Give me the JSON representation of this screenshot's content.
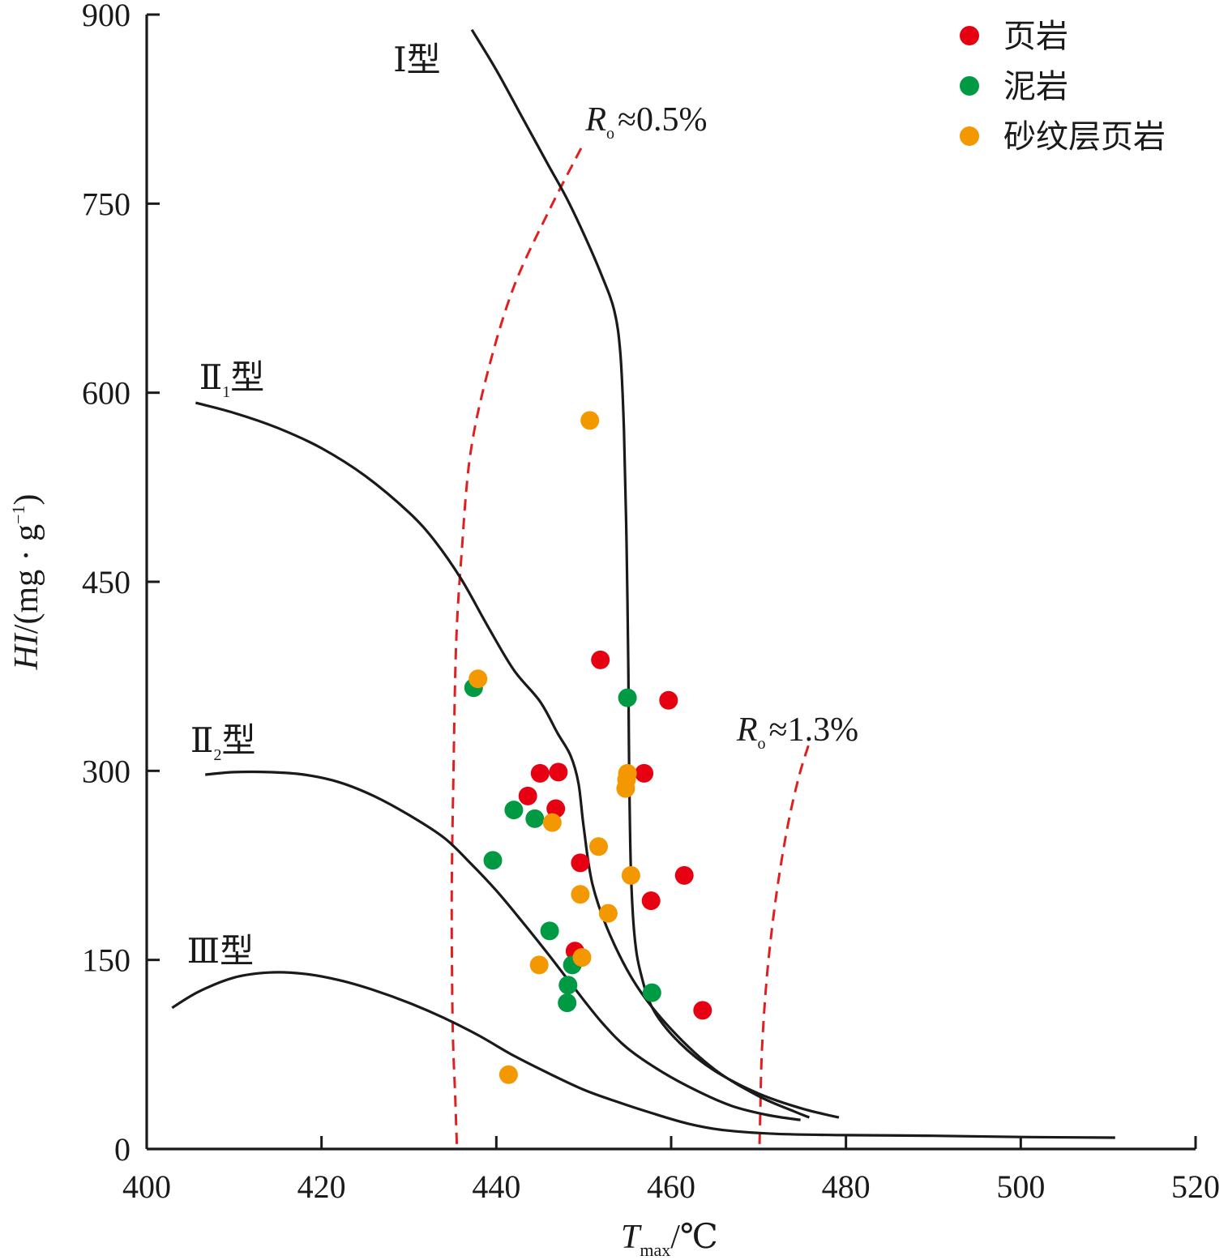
{
  "chart_data": {
    "type": "scatter",
    "xlim": [
      400,
      520
    ],
    "ylim": [
      0,
      900
    ],
    "xticks": [
      400,
      420,
      440,
      460,
      480,
      500,
      520
    ],
    "yticks": [
      0,
      150,
      300,
      450,
      600,
      750,
      900
    ],
    "xlabel": {
      "main": "T",
      "sub": "max",
      "unit": "/℃"
    },
    "ylabel": {
      "main": "HI",
      "unit": "/(mg · g",
      "sup": "−1",
      "close": ")"
    },
    "legend": {
      "position": "top-right",
      "entries": [
        {
          "name": "页岩",
          "color": "#e60012"
        },
        {
          "name": "泥岩",
          "color": "#009944"
        },
        {
          "name": "砂纹层页岩",
          "color": "#f39800"
        }
      ]
    },
    "series": [
      {
        "name": "页岩",
        "color": "#e60012",
        "points": [
          [
            451.9,
            388
          ],
          [
            459.7,
            356
          ],
          [
            445.0,
            298
          ],
          [
            447.1,
            299
          ],
          [
            456.9,
            298
          ],
          [
            443.6,
            280
          ],
          [
            446.8,
            270
          ],
          [
            449.6,
            227
          ],
          [
            461.5,
            217
          ],
          [
            457.7,
            197
          ],
          [
            449.0,
            157
          ],
          [
            463.6,
            110
          ]
        ]
      },
      {
        "name": "泥岩",
        "color": "#009944",
        "points": [
          [
            437.4,
            366
          ],
          [
            455.0,
            358
          ],
          [
            442.0,
            269
          ],
          [
            444.4,
            262
          ],
          [
            439.6,
            229
          ],
          [
            446.1,
            173
          ],
          [
            448.7,
            146
          ],
          [
            448.2,
            130
          ],
          [
            448.1,
            116
          ],
          [
            457.8,
            124
          ]
        ]
      },
      {
        "name": "砂纹层页岩",
        "color": "#f39800",
        "points": [
          [
            450.7,
            578
          ],
          [
            437.9,
            373
          ],
          [
            455.0,
            298
          ],
          [
            454.9,
            293
          ],
          [
            454.8,
            286
          ],
          [
            446.4,
            259
          ],
          [
            451.7,
            240
          ],
          [
            455.4,
            217
          ],
          [
            449.6,
            202
          ],
          [
            452.8,
            187
          ],
          [
            449.8,
            152
          ],
          [
            444.9,
            146
          ],
          [
            441.4,
            59
          ]
        ]
      }
    ],
    "curves": [
      {
        "name": "Ⅰ型",
        "label": {
          "main": "Ⅰ型",
          "sub": ""
        },
        "label_at": [
          428.2,
          855
        ],
        "points": [
          [
            437.2,
            888
          ],
          [
            440,
            856
          ],
          [
            443,
            818
          ],
          [
            446,
            780
          ],
          [
            448,
            755
          ],
          [
            450,
            726
          ],
          [
            452,
            694
          ],
          [
            453.5,
            665
          ],
          [
            454.2,
            630
          ],
          [
            454.6,
            570
          ],
          [
            454.9,
            480
          ],
          [
            455.1,
            380
          ],
          [
            455.2,
            300
          ],
          [
            455.4,
            220
          ],
          [
            455.8,
            170
          ],
          [
            456.5,
            140
          ],
          [
            458,
            110
          ],
          [
            461,
            84
          ],
          [
            465,
            62
          ],
          [
            470,
            44
          ],
          [
            475,
            32
          ],
          [
            479.2,
            25
          ]
        ]
      },
      {
        "name": "Ⅱ1型",
        "label": {
          "main": "Ⅱ",
          "sub": "1",
          "suffix": "型"
        },
        "label_at": [
          406.0,
          603
        ],
        "points": [
          [
            405.6,
            592
          ],
          [
            410,
            584
          ],
          [
            415,
            572
          ],
          [
            420,
            556
          ],
          [
            425,
            534
          ],
          [
            430,
            505
          ],
          [
            433,
            482
          ],
          [
            436,
            452
          ],
          [
            439,
            415
          ],
          [
            442,
            380
          ],
          [
            445,
            355
          ],
          [
            447,
            330
          ],
          [
            448.5,
            312
          ],
          [
            449.4,
            290
          ],
          [
            450,
            255
          ],
          [
            451,
            210
          ],
          [
            453,
            170
          ],
          [
            456,
            130
          ],
          [
            460,
            95
          ],
          [
            465,
            63
          ],
          [
            470,
            42
          ],
          [
            474,
            30
          ],
          [
            475.8,
            25
          ]
        ]
      },
      {
        "name": "Ⅱ2型",
        "label": {
          "main": "Ⅱ",
          "sub": "2",
          "suffix": "型"
        },
        "label_at": [
          405.0,
          315
        ],
        "points": [
          [
            406.7,
            297
          ],
          [
            410,
            299
          ],
          [
            414,
            299
          ],
          [
            418,
            297
          ],
          [
            422,
            291
          ],
          [
            426,
            280
          ],
          [
            430,
            265
          ],
          [
            434,
            247
          ],
          [
            437,
            227
          ],
          [
            440,
            205
          ],
          [
            443,
            180
          ],
          [
            446,
            154
          ],
          [
            449,
            127
          ],
          [
            452,
            101
          ],
          [
            455,
            80
          ],
          [
            459,
            61
          ],
          [
            463,
            46
          ],
          [
            467,
            34
          ],
          [
            471,
            27
          ],
          [
            474.8,
            23
          ]
        ]
      },
      {
        "name": "Ⅲ型",
        "label": {
          "main": "Ⅲ型",
          "sub": ""
        },
        "label_at": [
          404.6,
          148
        ],
        "points": [
          [
            402.9,
            112
          ],
          [
            406,
            125
          ],
          [
            410,
            136
          ],
          [
            414,
            140
          ],
          [
            418,
            139
          ],
          [
            422,
            134
          ],
          [
            426,
            126
          ],
          [
            430,
            116
          ],
          [
            434,
            104
          ],
          [
            438,
            90
          ],
          [
            442,
            74
          ],
          [
            446,
            60
          ],
          [
            450,
            47
          ],
          [
            454,
            37
          ],
          [
            458,
            28
          ],
          [
            462,
            20
          ],
          [
            466,
            15
          ],
          [
            472,
            12
          ],
          [
            480,
            11
          ],
          [
            490,
            10.5
          ],
          [
            500,
            9.5
          ],
          [
            510.8,
            9
          ]
        ]
      }
    ],
    "ro_lines": [
      {
        "name": "Ro≈0.5%",
        "label": {
          "main": "R",
          "sub": "o",
          "text": "≈0.5%"
        },
        "label_at": [
          450.2,
          808
        ],
        "points": [
          [
            449.7,
            794
          ],
          [
            446,
            744
          ],
          [
            442,
            684
          ],
          [
            439,
            616
          ],
          [
            437,
            550
          ],
          [
            436,
            470
          ],
          [
            435.4,
            400
          ],
          [
            435.1,
            300
          ],
          [
            434.9,
            200
          ],
          [
            435,
            100
          ],
          [
            435.3,
            40
          ],
          [
            435.5,
            0
          ]
        ]
      },
      {
        "name": "Ro≈1.3%",
        "label": {
          "main": "R",
          "sub": "o",
          "text": "≈1.3%"
        },
        "label_at": [
          467.5,
          324
        ],
        "points": [
          [
            475.7,
            320
          ],
          [
            474.6,
            295
          ],
          [
            473.3,
            255
          ],
          [
            472.0,
            200
          ],
          [
            471.0,
            140
          ],
          [
            470.4,
            80
          ],
          [
            470.2,
            30
          ],
          [
            470.1,
            0
          ]
        ]
      }
    ]
  }
}
